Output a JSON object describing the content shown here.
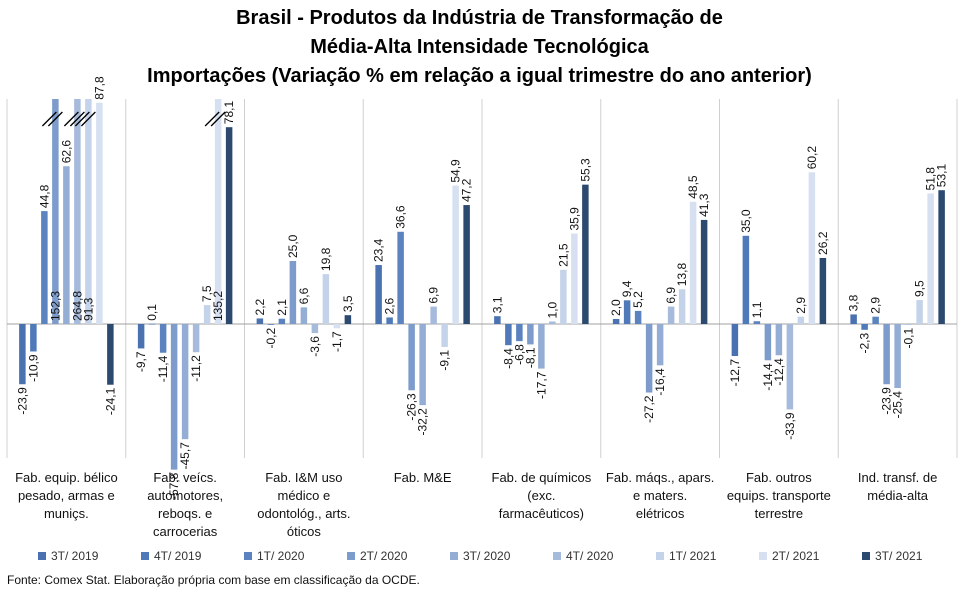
{
  "chart_data": {
    "type": "bar",
    "title": [
      "Brasil - Produtos da Indústria de Transformação de",
      "Média-Alta Intensidade Tecnológica",
      "Importações (Variação % em relação a igual trimestre do ano anterior)"
    ],
    "categories": [
      "Fab. equip. bélico pesado, armas e muniçs.",
      "Fab. veícs. automotores, reboqs. e carrocerias",
      "Fab. I&M uso médico e odontológ., arts. óticos",
      "Fab. M&E",
      "Fab. de químicos (exc. farmacêuticos)",
      "Fab. máqs., apars. e maters. elétricos",
      "Fab. outros equips. transporte terrestre",
      "Ind. transf. de média-alta"
    ],
    "category_label_lines": [
      [
        "Fab. equip. bélico",
        "pesado, armas e",
        "muniçs."
      ],
      [
        "Fab. veícs.",
        "automotores,",
        "reboqs. e",
        "carrocerias"
      ],
      [
        "Fab. I&M uso",
        "médico e",
        "odontológ., arts.",
        "óticos"
      ],
      [
        "Fab. M&E"
      ],
      [
        "Fab. de químicos",
        "(exc.",
        "farmacêuticos)"
      ],
      [
        "Fab. máqs., apars.",
        "e maters.",
        "elétricos"
      ],
      [
        "Fab. outros",
        "equips. transporte",
        "terrestre"
      ],
      [
        "Ind. transf. de",
        "média-alta"
      ]
    ],
    "series": [
      {
        "name": "3T/ 2019",
        "color": "#4a72b0",
        "values": [
          -23.9,
          -9.7,
          2.2,
          23.4,
          3.1,
          2.0,
          -12.7,
          3.8
        ],
        "labels": [
          "-23,9",
          "-9,7",
          "2,2",
          "23,4",
          "3,1",
          "2,0",
          "-12,7",
          "3,8"
        ]
      },
      {
        "name": "4T/ 2019",
        "color": "#4f79b8",
        "values": [
          -10.9,
          0.1,
          -0.2,
          2.6,
          -8.4,
          9.4,
          35.0,
          -2.3
        ],
        "labels": [
          "-10,9",
          "0,1",
          "-0,2",
          "2,6",
          "-8,4",
          "9,4",
          "35,0",
          "-2,3"
        ]
      },
      {
        "name": "1T/ 2020",
        "color": "#5a83c0",
        "values": [
          44.8,
          -11.4,
          2.1,
          36.6,
          -6.8,
          5.2,
          1.1,
          2.9
        ],
        "labels": [
          "44,8",
          "-11,4",
          "2,1",
          "36,6",
          "-6,8",
          "5,2",
          "1,1",
          "2,9"
        ]
      },
      {
        "name": "2T/ 2020",
        "color": "#7d9ccb",
        "values": [
          152.3,
          -57.8,
          25.0,
          -26.3,
          -8.1,
          -27.2,
          -14.4,
          -23.9
        ],
        "labels": [
          "152,3",
          "-57,8",
          "25,0",
          "-26,3",
          "-8,1",
          "-27,2",
          "-14,4",
          "-23,9"
        ]
      },
      {
        "name": "3T/ 2020",
        "color": "#94add4",
        "values": [
          62.6,
          -45.7,
          6.6,
          -32.2,
          -17.7,
          -16.4,
          -12.4,
          -25.4
        ],
        "labels": [
          "62,6",
          "-45,7",
          "6,6",
          "-32,2",
          "-17,7",
          "-16,4",
          "-12,4",
          "-25,4"
        ]
      },
      {
        "name": "4T/ 2020",
        "color": "#a6bbdc",
        "values": [
          264.8,
          -11.2,
          -3.6,
          6.9,
          1.0,
          6.9,
          -33.9,
          -0.1
        ],
        "labels": [
          "264,8",
          "-11,2",
          "-3,6",
          "6,9",
          "1,0",
          "6,9",
          "-33,9",
          "-0,1"
        ]
      },
      {
        "name": "1T/ 2021",
        "color": "#c5d3ea",
        "values": [
          91.3,
          7.5,
          19.8,
          -9.1,
          21.5,
          13.8,
          2.9,
          9.5
        ],
        "labels": [
          "91,3",
          "7,5",
          "19,8",
          "-9,1",
          "21,5",
          "13,8",
          "2,9",
          "9,5"
        ]
      },
      {
        "name": "2T/ 2021",
        "color": "#d6e0f0",
        "values": [
          87.8,
          135.2,
          -1.7,
          54.9,
          35.9,
          48.5,
          60.2,
          51.8
        ],
        "labels": [
          "87,8",
          "135,2",
          "-1,7",
          "54,9",
          "35,9",
          "48,5",
          "60,2",
          "51,8"
        ]
      },
      {
        "name": "3T/ 2021",
        "color": "#2c4a70",
        "values": [
          -24.1,
          78.1,
          3.5,
          47.2,
          55.3,
          41.3,
          26.2,
          53.1
        ],
        "labels": [
          "-24,1",
          "78,1",
          "3,5",
          "47,2",
          "55,3",
          "41,3",
          "26,2",
          "53,1"
        ]
      }
    ],
    "axis_break": "bars above the plot top are truncated and marked with double slashes",
    "legend_position": "bottom",
    "grid": false
  },
  "footer": {
    "source": "Fonte: Comex Stat. Elaboração própria com base em classificação da OCDE."
  }
}
